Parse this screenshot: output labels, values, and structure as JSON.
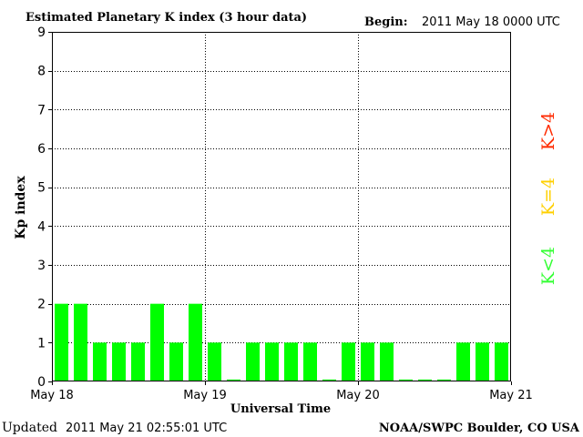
{
  "header": {
    "title": "Estimated Planetary K index (3 hour data)",
    "begin_label": "Begin:",
    "begin_value": "2011 May 18 0000 UTC"
  },
  "footer": {
    "updated_label": "Updated",
    "updated_value": "2011 May 21 02:55:01 UTC",
    "source": "NOAA/SWPC Boulder, CO USA"
  },
  "legend": {
    "items": [
      {
        "label": "K>4",
        "color": "#ff2a00"
      },
      {
        "label": "K=4",
        "color": "#ffd000"
      },
      {
        "label": "K<4",
        "color": "#33ff33"
      }
    ]
  },
  "colors": {
    "bar_low": "#00ff00",
    "bar_mid": "#ffd000",
    "bar_high": "#ff2a00",
    "axis": "#000000",
    "grid": "#000000"
  },
  "chart_data": {
    "type": "bar",
    "title": "Estimated Planetary K index (3 hour data)",
    "xlabel": "Universal Time",
    "ylabel": "Kp index",
    "ylim": [
      0,
      9
    ],
    "yticks": [
      "0",
      "1",
      "2",
      "3",
      "4",
      "5",
      "6",
      "7",
      "8",
      "9"
    ],
    "xticks": [
      "May 18",
      "May 19",
      "May 20",
      "May 21"
    ],
    "grid": true,
    "legend_position": "right",
    "values": [
      2,
      2,
      1,
      1,
      1,
      2,
      1,
      2,
      1,
      0.05,
      1,
      1,
      1,
      1,
      0.05,
      1,
      1,
      1,
      0.05,
      0.05,
      0.05,
      1,
      1,
      1
    ]
  }
}
